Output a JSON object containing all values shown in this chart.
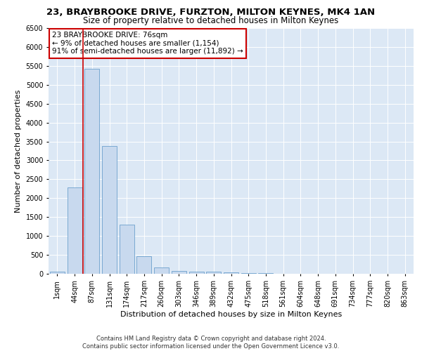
{
  "title": "23, BRAYBROOKE DRIVE, FURZTON, MILTON KEYNES, MK4 1AN",
  "subtitle": "Size of property relative to detached houses in Milton Keynes",
  "xlabel": "Distribution of detached houses by size in Milton Keynes",
  "ylabel": "Number of detached properties",
  "categories": [
    "1sqm",
    "44sqm",
    "87sqm",
    "131sqm",
    "174sqm",
    "217sqm",
    "260sqm",
    "303sqm",
    "346sqm",
    "389sqm",
    "432sqm",
    "475sqm",
    "518sqm",
    "561sqm",
    "604sqm",
    "648sqm",
    "691sqm",
    "734sqm",
    "777sqm",
    "820sqm",
    "863sqm"
  ],
  "values": [
    50,
    2280,
    5430,
    3380,
    1300,
    470,
    160,
    80,
    60,
    50,
    30,
    20,
    10,
    5,
    3,
    2,
    1,
    1,
    0,
    0,
    0
  ],
  "bar_color": "#c8d9ee",
  "bar_edge_color": "#6ca0cc",
  "vline_color": "#cc0000",
  "annotation_text": "23 BRAYBROOKE DRIVE: 76sqm\n← 9% of detached houses are smaller (1,154)\n91% of semi-detached houses are larger (11,892) →",
  "annotation_box_color": "#ffffff",
  "annotation_box_edge": "#cc0000",
  "ylim": [
    0,
    6500
  ],
  "yticks": [
    0,
    500,
    1000,
    1500,
    2000,
    2500,
    3000,
    3500,
    4000,
    4500,
    5000,
    5500,
    6000,
    6500
  ],
  "background_color": "#dce8f5",
  "footer_text": "Contains HM Land Registry data © Crown copyright and database right 2024.\nContains public sector information licensed under the Open Government Licence v3.0.",
  "title_fontsize": 9.5,
  "subtitle_fontsize": 8.5,
  "xlabel_fontsize": 8,
  "ylabel_fontsize": 8,
  "tick_fontsize": 7,
  "annotation_fontsize": 7.5,
  "footer_fontsize": 6
}
